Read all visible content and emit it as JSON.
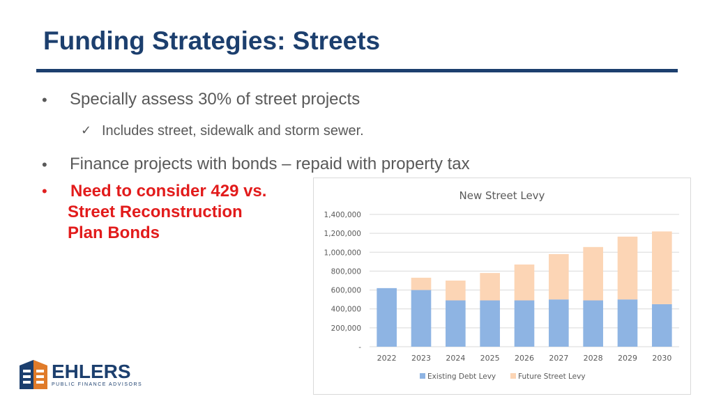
{
  "slide": {
    "title": "Funding Strategies: Streets",
    "bullets": [
      {
        "marker": "•",
        "text": "Specially assess 30% of street projects"
      },
      {
        "marker": "•",
        "text": "Finance projects with bonds – repaid with property tax"
      },
      {
        "marker": "•",
        "text": "Need to consider 429 vs."
      }
    ],
    "sub_bullet": {
      "marker": "✓",
      "text": "Includes street, sidewalk and storm sewer."
    },
    "red_lines": [
      "Street Reconstruction",
      "Plan Bonds"
    ],
    "colors": {
      "title": "#1c3f6e",
      "rule": "#1c3f6e",
      "body": "#595959",
      "highlight": "#e21b1b"
    }
  },
  "logo": {
    "name": "EHLERS",
    "tagline": "PUBLIC FINANCE ADVISORS",
    "icon": "ehlers-building-logo"
  },
  "chart_data": {
    "type": "bar",
    "stacked": true,
    "title": "New Street Levy",
    "categories": [
      "2022",
      "2023",
      "2024",
      "2025",
      "2026",
      "2027",
      "2028",
      "2029",
      "2030"
    ],
    "series": [
      {
        "name": "Existing Debt Levy",
        "color": "#8eb4e3",
        "values": [
          620000,
          600000,
          490000,
          490000,
          490000,
          500000,
          490000,
          500000,
          450000
        ]
      },
      {
        "name": "Future Street Levy",
        "color": "#fcd5b5",
        "values": [
          0,
          130000,
          210000,
          290000,
          380000,
          480000,
          565000,
          665000,
          770000
        ]
      }
    ],
    "ylim": [
      0,
      1400000
    ],
    "yticks": [
      0,
      200000,
      400000,
      600000,
      800000,
      1000000,
      1200000,
      1400000
    ],
    "ytick_labels": [
      "-",
      "200,000",
      "400,000",
      "600,000",
      "800,000",
      "1,000,000",
      "1,200,000",
      "1,400,000"
    ],
    "grid": true,
    "legend": "bottom"
  }
}
